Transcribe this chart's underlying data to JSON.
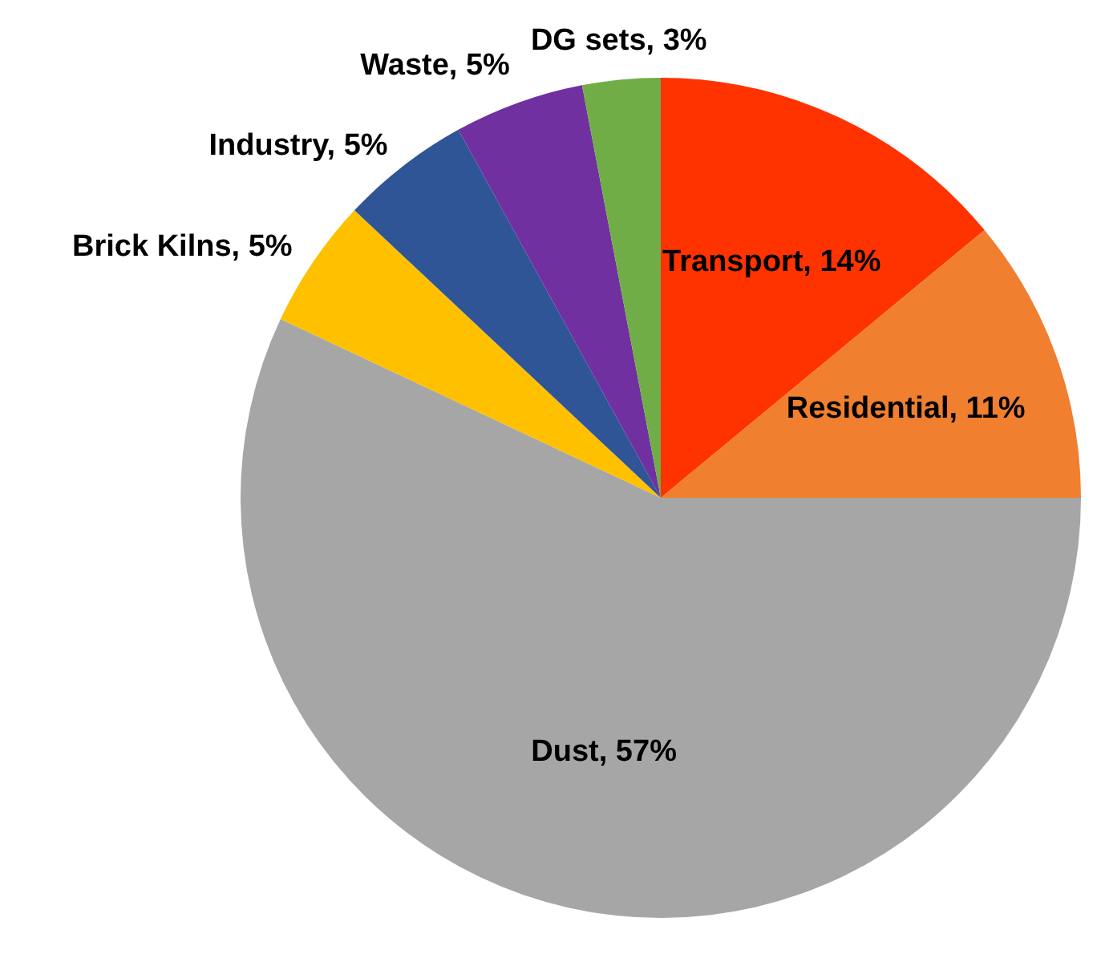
{
  "chart_data": {
    "type": "pie",
    "categories": [
      "Transport",
      "Residential",
      "Dust",
      "Brick Kilns",
      "Industry",
      "Waste",
      "DG sets"
    ],
    "values": [
      14,
      11,
      57,
      5,
      5,
      5,
      3
    ],
    "value_labels": [
      "14%",
      "11%",
      "57%",
      "5%",
      "5%",
      "5%",
      "3%"
    ],
    "colors": [
      "#ff3300",
      "#f07f30",
      "#a6a6a6",
      "#ffc000",
      "#2f5597",
      "#7030a0",
      "#70ad47"
    ],
    "legend": false
  }
}
